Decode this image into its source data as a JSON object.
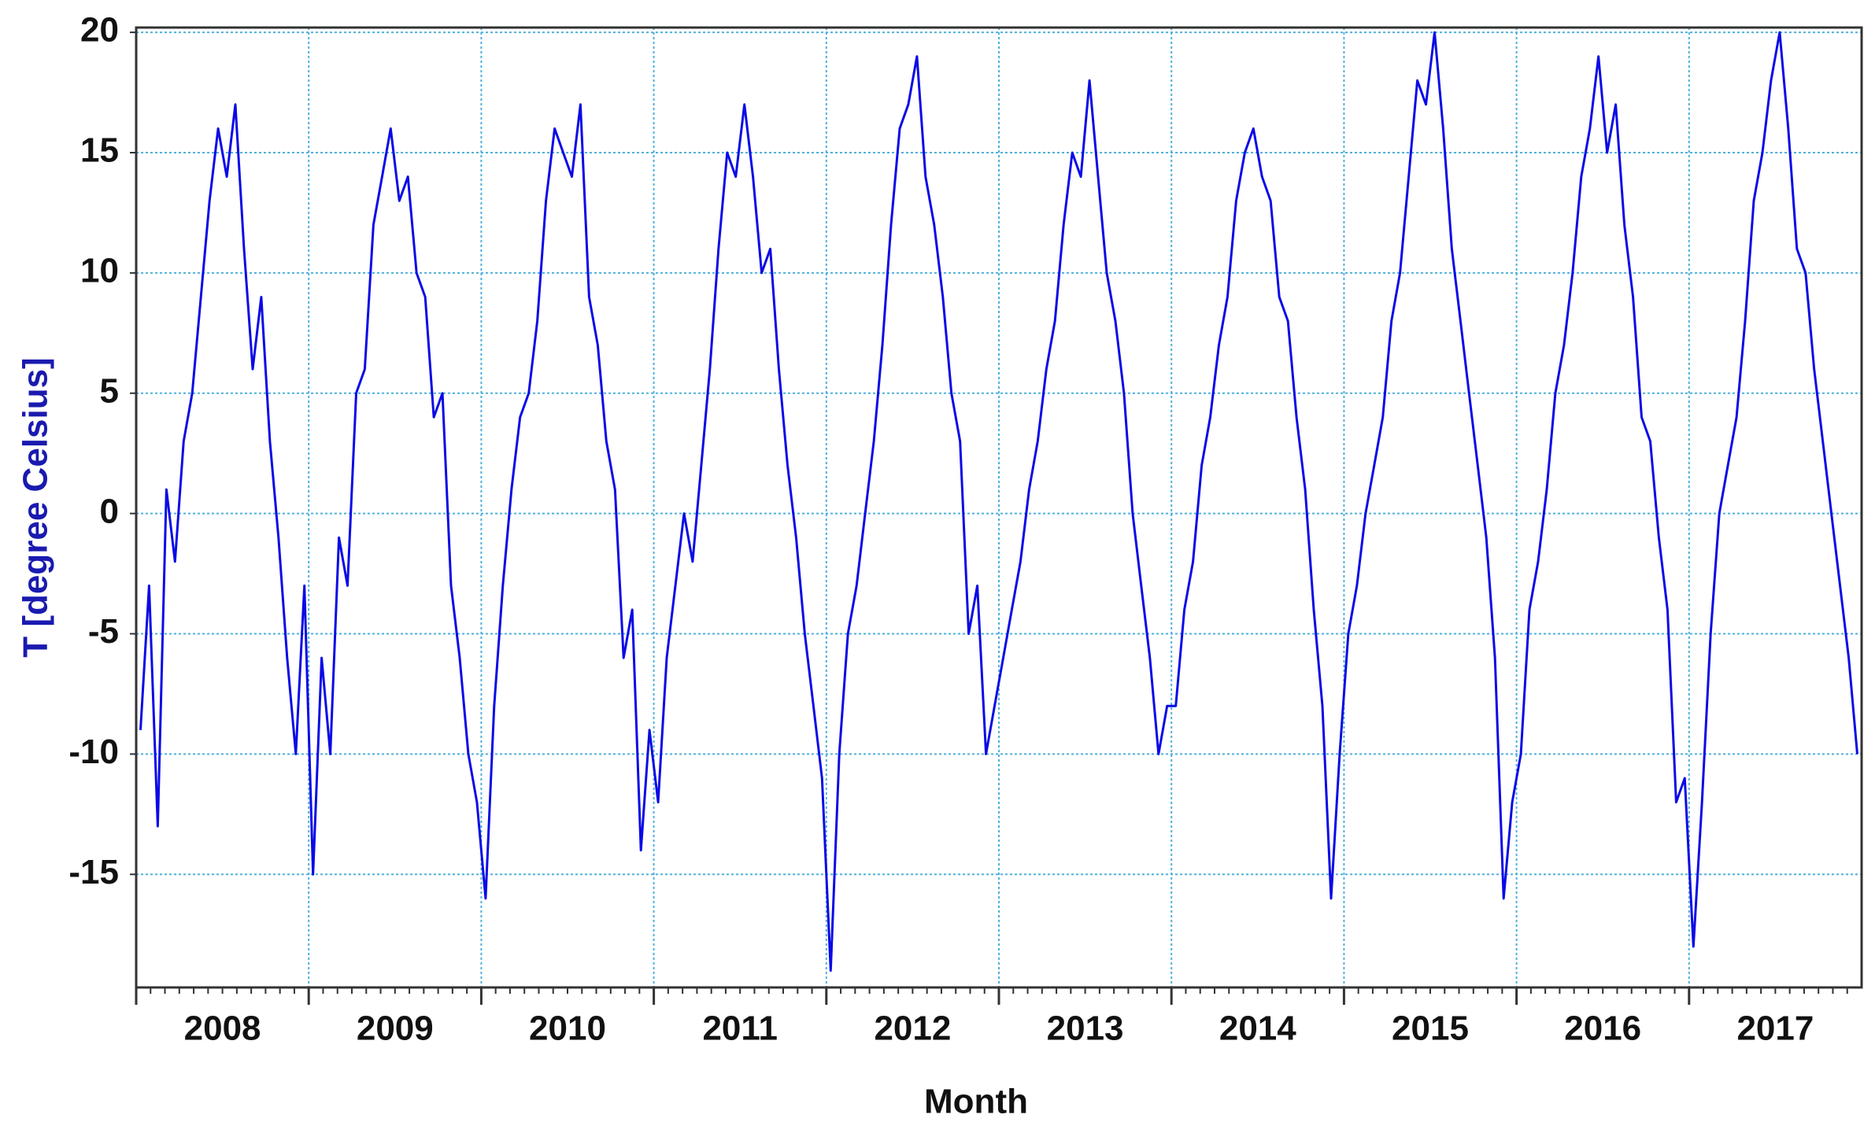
{
  "chart_data": {
    "type": "line",
    "x_label": "Month",
    "y_label": "T [degree Celsius]",
    "color": "#0a0ae6",
    "grid": true,
    "xlim": [
      2008,
      2018
    ],
    "ylim": [
      -19.7,
      20.2
    ],
    "yticks": [
      -15,
      -10,
      -5,
      0,
      5,
      10,
      15,
      20
    ],
    "xticks": [
      {
        "value": 2008.5,
        "label": "2008"
      },
      {
        "value": 2009.5,
        "label": "2009"
      },
      {
        "value": 2010.5,
        "label": "2010"
      },
      {
        "value": 2011.5,
        "label": "2011"
      },
      {
        "value": 2012.5,
        "label": "2012"
      },
      {
        "value": 2013.5,
        "label": "2013"
      },
      {
        "value": 2014.5,
        "label": "2014"
      },
      {
        "value": 2015.5,
        "label": "2015"
      },
      {
        "value": 2016.5,
        "label": "2016"
      },
      {
        "value": 2017.5,
        "label": "2017"
      }
    ],
    "x": [
      2008.025,
      2008.075,
      2008.125,
      2008.175,
      2008.225,
      2008.275,
      2008.325,
      2008.375,
      2008.425,
      2008.475,
      2008.525,
      2008.575,
      2008.625,
      2008.675,
      2008.725,
      2008.775,
      2008.825,
      2008.875,
      2008.925,
      2008.975,
      2009.025,
      2009.075,
      2009.125,
      2009.175,
      2009.225,
      2009.275,
      2009.325,
      2009.375,
      2009.425,
      2009.475,
      2009.525,
      2009.575,
      2009.625,
      2009.675,
      2009.725,
      2009.775,
      2009.825,
      2009.875,
      2009.925,
      2009.975,
      2010.025,
      2010.075,
      2010.125,
      2010.175,
      2010.225,
      2010.275,
      2010.325,
      2010.375,
      2010.425,
      2010.475,
      2010.525,
      2010.575,
      2010.625,
      2010.675,
      2010.725,
      2010.775,
      2010.825,
      2010.875,
      2010.925,
      2010.975,
      2011.025,
      2011.075,
      2011.125,
      2011.175,
      2011.225,
      2011.275,
      2011.325,
      2011.375,
      2011.425,
      2011.475,
      2011.525,
      2011.575,
      2011.625,
      2011.675,
      2011.725,
      2011.775,
      2011.825,
      2011.875,
      2011.925,
      2011.975,
      2012.025,
      2012.075,
      2012.125,
      2012.175,
      2012.225,
      2012.275,
      2012.325,
      2012.375,
      2012.425,
      2012.475,
      2012.525,
      2012.575,
      2012.625,
      2012.675,
      2012.725,
      2012.775,
      2012.825,
      2012.875,
      2012.925,
      2012.975,
      2013.025,
      2013.075,
      2013.125,
      2013.175,
      2013.225,
      2013.275,
      2013.325,
      2013.375,
      2013.425,
      2013.475,
      2013.525,
      2013.575,
      2013.625,
      2013.675,
      2013.725,
      2013.775,
      2013.825,
      2013.875,
      2013.925,
      2013.975,
      2014.025,
      2014.075,
      2014.125,
      2014.175,
      2014.225,
      2014.275,
      2014.325,
      2014.375,
      2014.425,
      2014.475,
      2014.525,
      2014.575,
      2014.625,
      2014.675,
      2014.725,
      2014.775,
      2014.825,
      2014.875,
      2014.925,
      2014.975,
      2015.025,
      2015.075,
      2015.125,
      2015.175,
      2015.225,
      2015.275,
      2015.325,
      2015.375,
      2015.425,
      2015.475,
      2015.525,
      2015.575,
      2015.625,
      2015.675,
      2015.725,
      2015.775,
      2015.825,
      2015.875,
      2015.925,
      2015.975,
      2016.025,
      2016.075,
      2016.125,
      2016.175,
      2016.225,
      2016.275,
      2016.325,
      2016.375,
      2016.425,
      2016.475,
      2016.525,
      2016.575,
      2016.625,
      2016.675,
      2016.725,
      2016.775,
      2016.825,
      2016.875,
      2016.925,
      2016.975,
      2017.025,
      2017.075,
      2017.125,
      2017.175,
      2017.225,
      2017.275,
      2017.325,
      2017.375,
      2017.425,
      2017.475,
      2017.525,
      2017.575,
      2017.625,
      2017.675,
      2017.725,
      2017.775,
      2017.825,
      2017.875,
      2017.925,
      2017.975
    ],
    "values": [
      -9,
      -3,
      -13,
      1,
      -2,
      3,
      5,
      9,
      13,
      16,
      14,
      17,
      11,
      6,
      9,
      3,
      -1,
      -6,
      -10,
      -3,
      -15,
      -6,
      -10,
      -1,
      -3,
      5,
      6,
      12,
      14,
      16,
      13,
      14,
      10,
      9,
      4,
      5,
      -3,
      -6,
      -10,
      -12,
      -16,
      -8,
      -3,
      1,
      4,
      5,
      8,
      13,
      16,
      15,
      14,
      17,
      9,
      7,
      3,
      1,
      -6,
      -4,
      -14,
      -9,
      -12,
      -6,
      -3,
      0,
      -2,
      2,
      6,
      11,
      15,
      14,
      17,
      14,
      10,
      11,
      6,
      2,
      -1,
      -5,
      -8,
      -11,
      -19,
      -10,
      -5,
      -3,
      0,
      3,
      7,
      12,
      16,
      17,
      19,
      14,
      12,
      9,
      5,
      3,
      -5,
      -3,
      -10,
      -8,
      -6,
      -4,
      -2,
      1,
      3,
      6,
      8,
      12,
      15,
      14,
      18,
      14,
      10,
      8,
      5,
      0,
      -3,
      -6,
      -10,
      -8,
      -8,
      -4,
      -2,
      2,
      4,
      7,
      9,
      13,
      15,
      16,
      14,
      13,
      9,
      8,
      4,
      1,
      -4,
      -8,
      -16,
      -10,
      -5,
      -3,
      0,
      2,
      4,
      8,
      10,
      14,
      18,
      17,
      20,
      16,
      11,
      8,
      5,
      2,
      -1,
      -6,
      -16,
      -12,
      -10,
      -4,
      -2,
      1,
      5,
      7,
      10,
      14,
      16,
      19,
      15,
      17,
      12,
      9,
      4,
      3,
      -1,
      -4,
      -12,
      -11,
      -18,
      -12,
      -5,
      0,
      2,
      4,
      8,
      13,
      15,
      18,
      20,
      16,
      11,
      10,
      6,
      3,
      0,
      -3,
      -6,
      -10
    ]
  }
}
